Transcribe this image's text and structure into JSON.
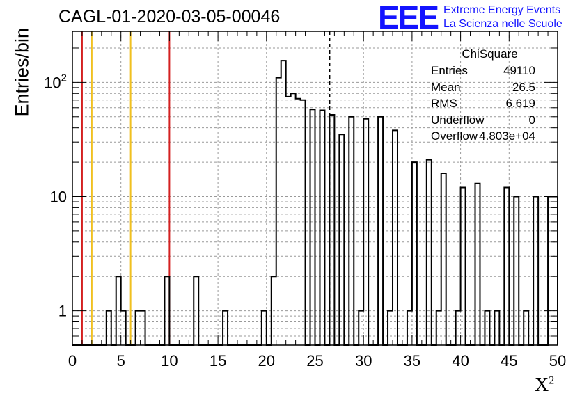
{
  "title": "CAGL-01-2020-03-05-00046",
  "logo": {
    "mark": "EEE",
    "line1": "Extreme Energy Events",
    "line2": "La Scienza nelle Scuole"
  },
  "stats": {
    "name": "ChiSquare",
    "rows": [
      {
        "k": "Entries",
        "v": "49110"
      },
      {
        "k": "Mean",
        "v": "26.5"
      },
      {
        "k": "RMS",
        "v": "6.619"
      },
      {
        "k": "Underflow",
        "v": "0"
      },
      {
        "k": "Overflow",
        "v": "4.803e+04"
      }
    ]
  },
  "chart_data": {
    "type": "histogram",
    "title": "CAGL-01-2020-03-05-00046",
    "xlabel": "X²",
    "ylabel": "Entries/bin",
    "xlim": [
      0,
      50
    ],
    "ylim": [
      0.5,
      280
    ],
    "yscale": "log",
    "grid": true,
    "bin_width": 0.5,
    "x_ticks": [
      0,
      5,
      10,
      15,
      20,
      25,
      30,
      35,
      40,
      45,
      50
    ],
    "y_ticks": [
      {
        "value": 1,
        "label": "1"
      },
      {
        "value": 10,
        "label": "10"
      },
      {
        "value": 100,
        "label": "10²"
      }
    ],
    "bins": [
      {
        "x": 3.5,
        "y": 1
      },
      {
        "x": 4.5,
        "y": 2
      },
      {
        "x": 5.0,
        "y": 1
      },
      {
        "x": 6.5,
        "y": 1
      },
      {
        "x": 7.0,
        "y": 1
      },
      {
        "x": 9.5,
        "y": 2
      },
      {
        "x": 12.5,
        "y": 2
      },
      {
        "x": 15.5,
        "y": 1
      },
      {
        "x": 19.5,
        "y": 1
      },
      {
        "x": 20.5,
        "y": 2
      },
      {
        "x": 21.0,
        "y": 110
      },
      {
        "x": 21.5,
        "y": 155
      },
      {
        "x": 22.0,
        "y": 75
      },
      {
        "x": 22.5,
        "y": 80
      },
      {
        "x": 23.0,
        "y": 72
      },
      {
        "x": 23.5,
        "y": 70
      },
      {
        "x": 24.5,
        "y": 58
      },
      {
        "x": 25.5,
        "y": 57
      },
      {
        "x": 26.5,
        "y": 52
      },
      {
        "x": 27.5,
        "y": 35
      },
      {
        "x": 28.5,
        "y": 50
      },
      {
        "x": 29.5,
        "y": 1
      },
      {
        "x": 30.0,
        "y": 48
      },
      {
        "x": 31.5,
        "y": 50
      },
      {
        "x": 32.5,
        "y": 1
      },
      {
        "x": 33.0,
        "y": 38
      },
      {
        "x": 34.5,
        "y": 1
      },
      {
        "x": 35.0,
        "y": 20
      },
      {
        "x": 36.5,
        "y": 21
      },
      {
        "x": 37.5,
        "y": 1
      },
      {
        "x": 38.0,
        "y": 16
      },
      {
        "x": 39.5,
        "y": 1
      },
      {
        "x": 40.0,
        "y": 12
      },
      {
        "x": 41.5,
        "y": 13
      },
      {
        "x": 42.5,
        "y": 1
      },
      {
        "x": 43.5,
        "y": 1
      },
      {
        "x": 44.5,
        "y": 12
      },
      {
        "x": 45.5,
        "y": 10
      },
      {
        "x": 46.5,
        "y": 1
      },
      {
        "x": 47.5,
        "y": 10
      },
      {
        "x": 49.0,
        "y": 10
      },
      {
        "x": 49.5,
        "y": 10
      }
    ],
    "reference_lines": [
      {
        "x": 1,
        "color": "#d42020",
        "style": "solid"
      },
      {
        "x": 2,
        "color": "#f0c020",
        "style": "solid"
      },
      {
        "x": 6,
        "color": "#f0c020",
        "style": "solid"
      },
      {
        "x": 10,
        "color": "#d42020",
        "style": "solid"
      },
      {
        "x": 26.5,
        "color": "#000000",
        "style": "dashed"
      }
    ]
  }
}
